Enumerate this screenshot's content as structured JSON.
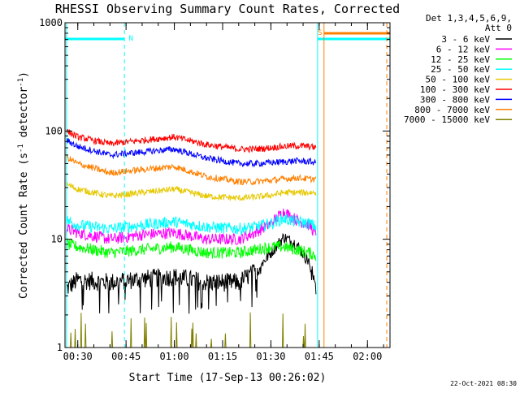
{
  "chart_data": {
    "type": "line",
    "title": "RHESSI Observing Summary Count Rates, Corrected",
    "xlabel": "Start Time (17-Sep-13 00:26:02)",
    "ylabel": "Corrected Count Rate (s",
    "ylabel_sup1": "-1",
    "ylabel_mid": " detector",
    "ylabel_sup2": "-1",
    "ylabel_end": ")",
    "y_scale": "log",
    "ylim": [
      1,
      1000
    ],
    "xlim": [
      "00:26:02",
      "02:07:00"
    ],
    "x_ticks": [
      "00:30",
      "00:45",
      "01:00",
      "01:15",
      "01:30",
      "01:45",
      "02:00"
    ],
    "y_ticks": [
      "1",
      "10",
      "100",
      "1000"
    ],
    "legend_header": [
      "Det 1,3,4,5,6,9,",
      "Att 0"
    ],
    "legend_position": "right",
    "timestamp": "22-Oct-2021 08:30",
    "flags": [
      {
        "label": "N",
        "color": "#00ffff",
        "start": "00:26:02",
        "end": "00:44:30"
      },
      {
        "label": "S",
        "color": "#ff8000",
        "start": "01:46:30",
        "end": "02:07:00"
      }
    ],
    "cyan_bars": [
      {
        "start": "00:26:02",
        "end": "00:44:30"
      },
      {
        "start": "01:44:30",
        "end": "02:07:00"
      }
    ],
    "vlines": [
      {
        "time": "00:26:30",
        "color": "#00ffff",
        "dashed": false
      },
      {
        "time": "00:44:30",
        "color": "#00ffff",
        "dashed": true
      },
      {
        "time": "01:44:30",
        "color": "#00ffff",
        "dashed": false
      },
      {
        "time": "01:46:30",
        "color": "#ff8000",
        "dashed": false
      },
      {
        "time": "02:06:00",
        "color": "#ff8000",
        "dashed": true
      }
    ],
    "series": [
      {
        "name": "3 - 6 keV",
        "color": "#000000",
        "x": [
          "00:26:30",
          "00:30",
          "00:40",
          "00:50",
          "01:00",
          "01:10",
          "01:20",
          "01:25",
          "01:30",
          "01:34",
          "01:38",
          "01:42",
          "01:44"
        ],
        "y": [
          3.5,
          4.2,
          4.0,
          4.3,
          4.5,
          4.0,
          4.0,
          5.0,
          7.5,
          10.5,
          9.0,
          6.0,
          3.5
        ]
      },
      {
        "name": "6 - 12 keV",
        "color": "#ff00ff",
        "x": [
          "00:26:30",
          "00:30",
          "00:40",
          "00:50",
          "01:00",
          "01:10",
          "01:20",
          "01:25",
          "01:30",
          "01:34",
          "01:38",
          "01:42",
          "01:44"
        ],
        "y": [
          12.5,
          11.5,
          10.0,
          11.0,
          11.5,
          10.0,
          10.0,
          11.5,
          14.0,
          18.0,
          15.0,
          13.5,
          11.0
        ]
      },
      {
        "name": "12 - 25 keV",
        "color": "#00ff00",
        "x": [
          "00:26:30",
          "00:30",
          "00:40",
          "00:50",
          "01:00",
          "01:10",
          "01:20",
          "01:25",
          "01:30",
          "01:34",
          "01:38",
          "01:42",
          "01:44"
        ],
        "y": [
          9.0,
          8.5,
          7.5,
          8.0,
          8.5,
          7.5,
          7.5,
          8.0,
          8.5,
          8.5,
          8.0,
          7.5,
          7.0
        ]
      },
      {
        "name": "25 - 50 keV",
        "color": "#00ffff",
        "x": [
          "00:26:30",
          "00:30",
          "00:40",
          "00:50",
          "01:00",
          "01:10",
          "01:20",
          "01:25",
          "01:30",
          "01:34",
          "01:38",
          "01:42",
          "01:44"
        ],
        "y": [
          15.0,
          13.5,
          12.5,
          13.5,
          14.5,
          13.0,
          12.5,
          13.0,
          14.0,
          15.5,
          14.5,
          14.0,
          13.0
        ]
      },
      {
        "name": "50 - 100 keV",
        "color": "#e6c800",
        "x": [
          "00:26:30",
          "00:30",
          "00:40",
          "00:50",
          "01:00",
          "01:10",
          "01:20",
          "01:25",
          "01:30",
          "01:34",
          "01:38",
          "01:42",
          "01:44"
        ],
        "y": [
          32,
          29,
          25,
          27,
          29,
          25,
          24,
          24.5,
          25.5,
          27,
          27,
          27,
          27
        ]
      },
      {
        "name": "100 - 300 keV",
        "color": "#ff0000",
        "x": [
          "00:26:30",
          "00:30",
          "00:40",
          "00:50",
          "01:00",
          "01:10",
          "01:20",
          "01:25",
          "01:30",
          "01:34",
          "01:38",
          "01:42",
          "01:44"
        ],
        "y": [
          100,
          88,
          76,
          82,
          88,
          75,
          68,
          68,
          70,
          72,
          73,
          72,
          70
        ]
      },
      {
        "name": "300 - 800 keV",
        "color": "#0000ff",
        "x": [
          "00:26:30",
          "00:30",
          "00:40",
          "00:50",
          "01:00",
          "01:10",
          "01:20",
          "01:25",
          "01:30",
          "01:34",
          "01:38",
          "01:42",
          "01:44"
        ],
        "y": [
          82,
          72,
          60,
          64,
          68,
          56,
          50,
          50,
          51,
          52,
          53,
          52,
          51
        ]
      },
      {
        "name": "800 - 7000 keV",
        "color": "#ff8000",
        "x": [
          "00:26:30",
          "00:30",
          "00:40",
          "00:50",
          "01:00",
          "01:10",
          "01:20",
          "01:25",
          "01:30",
          "01:34",
          "01:38",
          "01:42",
          "01:44"
        ],
        "y": [
          57,
          50,
          41,
          44,
          47,
          38,
          34,
          34,
          35,
          36,
          37,
          36,
          36
        ]
      },
      {
        "name": "7000 - 15000 keV",
        "color": "#808000",
        "x": [
          "00:26:30",
          "00:30",
          "00:40",
          "00:50",
          "01:00",
          "01:10",
          "01:20",
          "01:25",
          "01:30",
          "01:34",
          "01:38",
          "01:42",
          "01:44"
        ],
        "y": [
          1,
          1,
          1,
          1,
          1,
          1,
          1,
          1,
          1,
          1,
          1,
          1,
          1
        ]
      }
    ]
  }
}
